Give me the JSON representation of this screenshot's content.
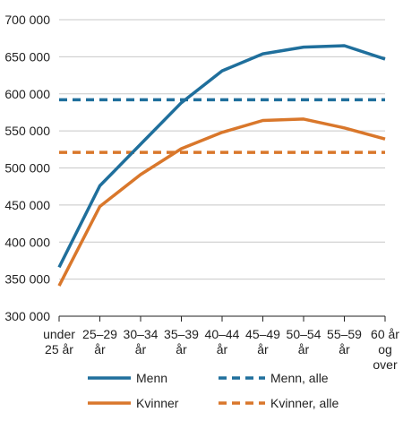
{
  "chart_data": {
    "type": "line",
    "title": "",
    "xlabel": "",
    "ylabel": "",
    "ylim": [
      300000,
      700000
    ],
    "yticks": [
      "300 000",
      "350 000",
      "400 000",
      "450 000",
      "500 000",
      "550 000",
      "600 000",
      "650 000",
      "700 000"
    ],
    "grid": true,
    "legend_position": "bottom",
    "categories": [
      [
        "under",
        "25 år"
      ],
      [
        "25–29",
        "år"
      ],
      [
        "30–34",
        "år"
      ],
      [
        "35–39",
        "år"
      ],
      [
        "40–44",
        "år"
      ],
      [
        "45–49",
        "år"
      ],
      [
        "50–54",
        "år"
      ],
      [
        "55–59",
        "år"
      ],
      [
        "60 år",
        "og",
        "over"
      ]
    ],
    "series": [
      {
        "name": "Menn",
        "values": [
          366000,
          476000,
          532000,
          588000,
          631000,
          654000,
          663000,
          665000,
          647000
        ],
        "color": "#1f6f9c",
        "style": "solid"
      },
      {
        "name": "Kvinner",
        "values": [
          341000,
          448000,
          491000,
          526000,
          548000,
          564000,
          566000,
          554000,
          539000
        ],
        "color": "#d9772b",
        "style": "solid"
      },
      {
        "name": "Menn, alle",
        "values": [
          592000,
          592000,
          592000,
          592000,
          592000,
          592000,
          592000,
          592000,
          592000
        ],
        "color": "#1f6f9c",
        "style": "dashed"
      },
      {
        "name": "Kvinner, alle",
        "values": [
          521000,
          521000,
          521000,
          521000,
          521000,
          521000,
          521000,
          521000,
          521000
        ],
        "color": "#d9772b",
        "style": "dashed"
      }
    ]
  }
}
